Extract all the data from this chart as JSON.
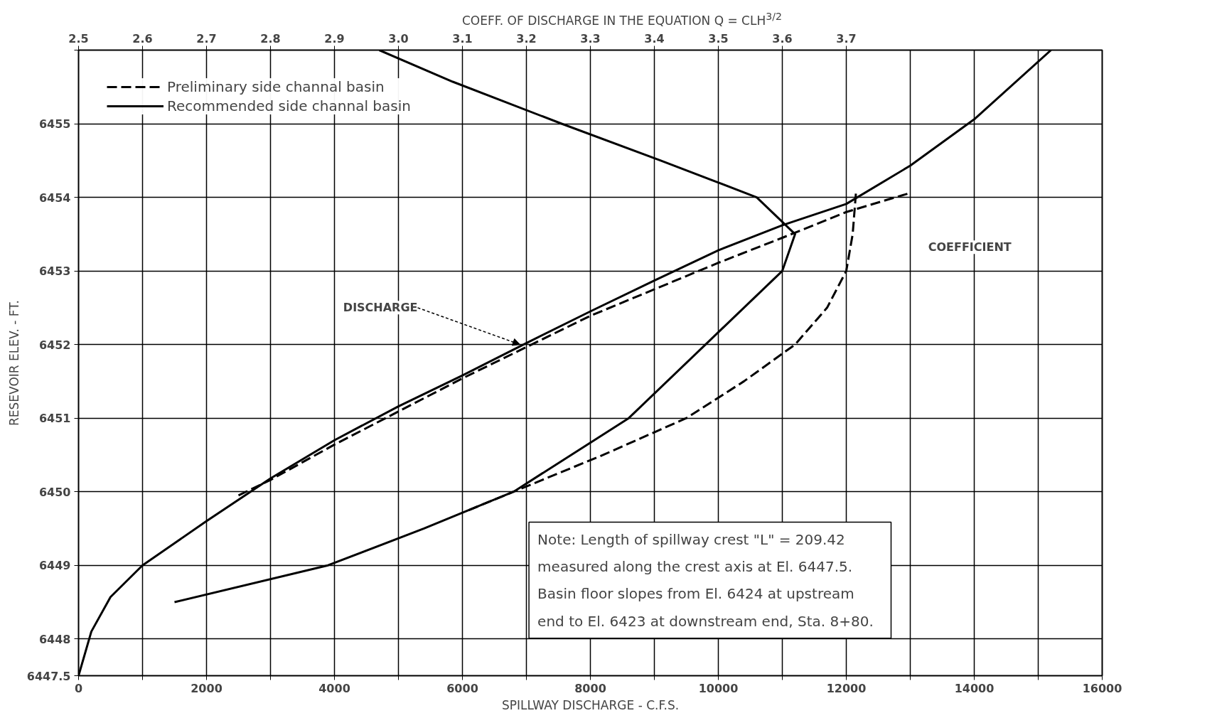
{
  "chart_data": {
    "type": "line",
    "xlabel": "SPILLWAY DISCHARGE - C.F.S.",
    "ylabel": "RESEVOIR ELEV. - FT.",
    "x2label": "COEFF. OF DISCHARGE IN THE EQUATION Q = CLH$^{3/2}$",
    "xlim": [
      0,
      16000
    ],
    "xticks": [
      0,
      {
        "value": 1000,
        "label": null
      },
      2000,
      {
        "value": 3000,
        "label": null
      },
      4000,
      {
        "value": 5000,
        "label": null
      },
      6000,
      {
        "value": 7000,
        "label": null
      },
      8000,
      {
        "value": 9000,
        "label": null
      },
      10000,
      {
        "value": 11000,
        "label": null
      },
      12000,
      {
        "value": 13000,
        "label": null
      },
      14000,
      {
        "value": 15000,
        "label": null
      },
      16000
    ],
    "x2lim": [
      2.5,
      4.1
    ],
    "x2ticks": [
      2.5,
      2.6,
      2.7,
      2.8,
      2.9,
      {
        "value": 3.0,
        "label": "3.0"
      },
      3.1,
      3.2,
      3.3,
      3.4,
      3.5,
      3.6,
      3.7
    ],
    "ylim": [
      6447.5,
      6456
    ],
    "yticks": [
      6447.5,
      6448,
      6449,
      6450,
      6451,
      6452,
      6453,
      6454,
      6455,
      {
        "value": 6456,
        "label": null
      }
    ],
    "grid": true,
    "legend": "top left",
    "series": [
      {
        "name": "Preliminary side channal basin",
        "color": "#000000",
        "line_style": "dashed",
        "x": [
          2500,
          3000,
          4000,
          6000,
          8000,
          10000,
          11000,
          12000,
          13000
        ],
        "values": [
          6449.95,
          6450.16,
          6450.64,
          6451.54,
          6452.39,
          6453.11,
          6453.45,
          6453.8,
          6454.06
        ]
      },
      {
        "name": "Recommended side channal basin",
        "color": "#000000",
        "line_style": "solid",
        "x": [
          0,
          200,
          500,
          1000,
          2000,
          3000,
          4000,
          5000,
          6000,
          7000,
          8000,
          9000,
          10000,
          11000,
          12000,
          13000,
          14000,
          15200
        ],
        "values": [
          6447.5,
          6448.1,
          6448.57,
          6449.0,
          6449.6,
          6450.18,
          6450.7,
          6451.16,
          6451.58,
          6452.02,
          6452.45,
          6452.87,
          6453.28,
          6453.62,
          6453.91,
          6454.43,
          6455.06,
          6456.0
        ]
      },
      {
        "color": "#000000",
        "line_style": "dashed",
        "axis": "x2",
        "x": [
          3.11,
          3.18,
          3.32,
          3.45,
          3.54,
          3.62,
          3.67,
          3.7,
          3.71,
          3.715
        ],
        "values": [
          6449.75,
          6450.0,
          6450.5,
          6451.0,
          6451.5,
          6452.0,
          6452.5,
          6453.0,
          6453.5,
          6454.05
        ]
      },
      {
        "color": "#000000",
        "line_style": "solid",
        "axis": "x2",
        "x": [
          2.65,
          2.89,
          3.04,
          3.18,
          3.36,
          3.48,
          3.6,
          3.62,
          3.56,
          3.41,
          3.255,
          3.085,
          2.97
        ],
        "values": [
          6448.5,
          6449.0,
          6449.5,
          6450.0,
          6451.0,
          6452.0,
          6453.0,
          6453.5,
          6454.0,
          6454.5,
          6455.0,
          6455.57,
          6456.0
        ]
      }
    ],
    "annotations": [
      {
        "text": "DISCHARGE",
        "x": 6900,
        "y": 6452.0
      },
      "COEFFICIENT",
      "Note: Length of spillway crest \"L\" = 209.42\n  measured along the crest axis at El. 6447.5.\nBasin floor slopes from El. 6424 at upstream\n  end to El. 6423 at downstream end, Sta. 8+80."
    ]
  }
}
